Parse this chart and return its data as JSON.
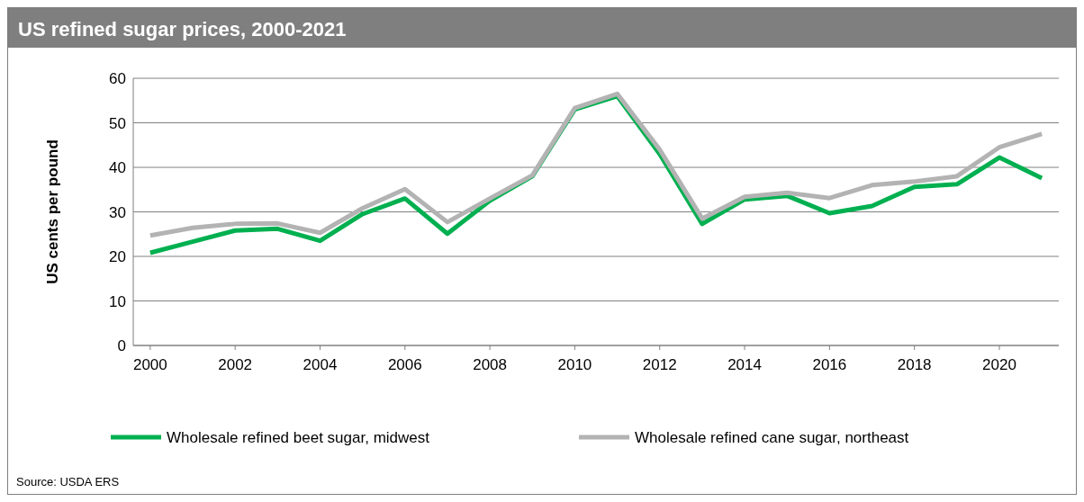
{
  "chart_data": {
    "type": "line",
    "title": "US refined sugar prices, 2000-2021",
    "ylabel": "US cents per pound",
    "x": [
      2000,
      2001,
      2002,
      2003,
      2004,
      2005,
      2006,
      2007,
      2008,
      2009,
      2010,
      2011,
      2012,
      2013,
      2014,
      2015,
      2016,
      2017,
      2018,
      2019,
      2020,
      2021
    ],
    "series": [
      {
        "name": "Wholesale refined beet sugar, midwest",
        "color": "#00b050",
        "values": [
          20.8,
          23.3,
          25.8,
          26.2,
          23.5,
          29.5,
          33,
          25.1,
          32.5,
          38,
          53,
          56,
          43,
          27.3,
          32.8,
          33.6,
          29.7,
          31.3,
          35.6,
          36.2,
          42.2,
          37.6
        ]
      },
      {
        "name": "Wholesale refined cane sugar, northeast",
        "color": "#b3b3b3",
        "values": [
          24.7,
          26.4,
          27.3,
          27.4,
          25.3,
          30.8,
          35.1,
          27.7,
          33,
          38.2,
          53.3,
          56.5,
          44,
          28.5,
          33.4,
          34.3,
          33.1,
          36,
          36.8,
          38,
          44.5,
          47.5
        ]
      }
    ],
    "xlim": [
      1999.6,
      2021.4
    ],
    "xticks": [
      2000,
      2002,
      2004,
      2006,
      2008,
      2010,
      2012,
      2014,
      2016,
      2018,
      2020
    ],
    "ylim": [
      0,
      60
    ],
    "yticks": [
      0,
      10,
      20,
      30,
      40,
      50,
      60
    ],
    "grid": "y",
    "legend": "bottom",
    "marker": "none",
    "line_style": "solid",
    "annotations": [
      "Source: USDA ERS"
    ]
  }
}
